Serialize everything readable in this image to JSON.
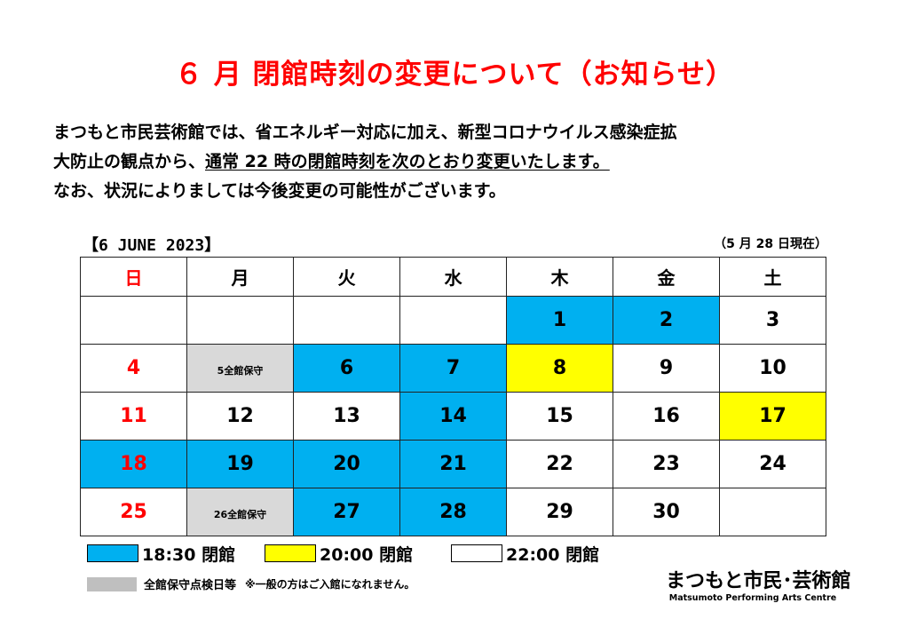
{
  "title": "６ 月  閉館時刻の変更について（お知らせ）",
  "intro": {
    "line1": "まつもと市民芸術館では、省エネルギー対応に加え、新型コロナウイルス感染症拡",
    "line2_pre": "大防止の観点から、",
    "line2_underlined": "通常 22 時の閉館時刻を次のとおり変更いたします。",
    "line3": "なお、状況によりましては今後変更の可能性がございます。"
  },
  "calendar": {
    "label": "【6 JUNE  2023】",
    "as_of": "（5 月 28 日現在）",
    "weekdays": [
      "日",
      "月",
      "火",
      "水",
      "木",
      "金",
      "土"
    ],
    "weeks": [
      [
        {
          "t": "",
          "c": ""
        },
        {
          "t": "",
          "c": ""
        },
        {
          "t": "",
          "c": ""
        },
        {
          "t": "",
          "c": ""
        },
        {
          "t": "1",
          "c": "blue"
        },
        {
          "t": "2",
          "c": "blue"
        },
        {
          "t": "3",
          "c": ""
        }
      ],
      [
        {
          "t": "4",
          "c": ""
        },
        {
          "t": "5全館保守",
          "c": "gray"
        },
        {
          "t": "6",
          "c": "blue"
        },
        {
          "t": "7",
          "c": "blue"
        },
        {
          "t": "8",
          "c": "yellow"
        },
        {
          "t": "9",
          "c": ""
        },
        {
          "t": "10",
          "c": ""
        }
      ],
      [
        {
          "t": "11",
          "c": ""
        },
        {
          "t": "12",
          "c": ""
        },
        {
          "t": "13",
          "c": ""
        },
        {
          "t": "14",
          "c": "blue"
        },
        {
          "t": "15",
          "c": ""
        },
        {
          "t": "16",
          "c": ""
        },
        {
          "t": "17",
          "c": "yellow"
        }
      ],
      [
        {
          "t": "18",
          "c": "blue"
        },
        {
          "t": "19",
          "c": "blue"
        },
        {
          "t": "20",
          "c": "blue"
        },
        {
          "t": "21",
          "c": "blue"
        },
        {
          "t": "22",
          "c": ""
        },
        {
          "t": "23",
          "c": ""
        },
        {
          "t": "24",
          "c": ""
        }
      ],
      [
        {
          "t": "25",
          "c": ""
        },
        {
          "t": "26全館保守",
          "c": "gray"
        },
        {
          "t": "27",
          "c": "blue"
        },
        {
          "t": "28",
          "c": "blue"
        },
        {
          "t": "29",
          "c": ""
        },
        {
          "t": "30",
          "c": ""
        },
        {
          "t": "",
          "c": ""
        }
      ]
    ]
  },
  "legend": {
    "blue_label": "18:30 閉館",
    "yellow_label": "20:00 閉館",
    "white_label": "22:00 閉館",
    "gray_label": "全館保守点検日等",
    "gray_note": "※一般の方はご入館になれません。"
  },
  "colors": {
    "title_red": "#ff0000",
    "blue": "#00b0f0",
    "yellow": "#ffff00",
    "gray": "#d9d9d9"
  },
  "logo": {
    "jp": "まつもと市民･芸術館",
    "en": "Matsumoto Performing Arts Centre"
  }
}
